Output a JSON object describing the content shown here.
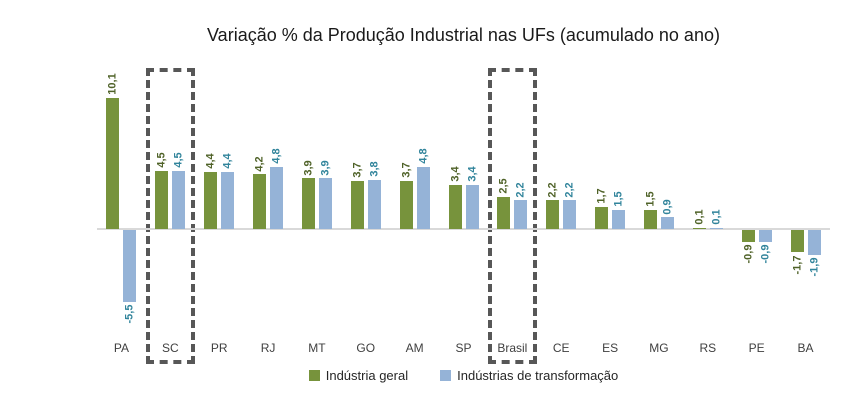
{
  "title": "Variação % da Produção Industrial nas UFs (acumulado no ano)",
  "chart_data": {
    "type": "bar",
    "title": "Variação % da Produção Industrial nas UFs (acumulado no ano)",
    "categories": [
      "PA",
      "SC",
      "PR",
      "RJ",
      "MT",
      "GO",
      "AM",
      "SP",
      "Brasil",
      "CE",
      "ES",
      "MG",
      "RS",
      "PE",
      "BA"
    ],
    "series": [
      {
        "name": "Indústria geral",
        "color": "#77933C",
        "label_color": "#4F6228",
        "values": [
          10.1,
          4.5,
          4.4,
          4.2,
          3.9,
          3.7,
          3.7,
          3.4,
          2.5,
          2.2,
          1.7,
          1.5,
          0.1,
          -0.9,
          -1.7
        ]
      },
      {
        "name": "Indústrias de transformação",
        "color": "#95B3D7",
        "label_color": "#31849B",
        "values": [
          -5.5,
          4.5,
          4.4,
          4.8,
          3.9,
          3.8,
          4.8,
          3.4,
          2.2,
          2.2,
          1.5,
          0.9,
          0.1,
          -0.9,
          -1.9
        ]
      }
    ],
    "value_format": "comma-decimal",
    "data_labels_rotated": true,
    "highlighted_categories": [
      "SC",
      "Brasil"
    ],
    "highlight_box_color": "#575757",
    "axis_line_color": "#D9D9D9",
    "ylim": [
      -7,
      12
    ],
    "grid": false,
    "legend_position": "bottom"
  }
}
